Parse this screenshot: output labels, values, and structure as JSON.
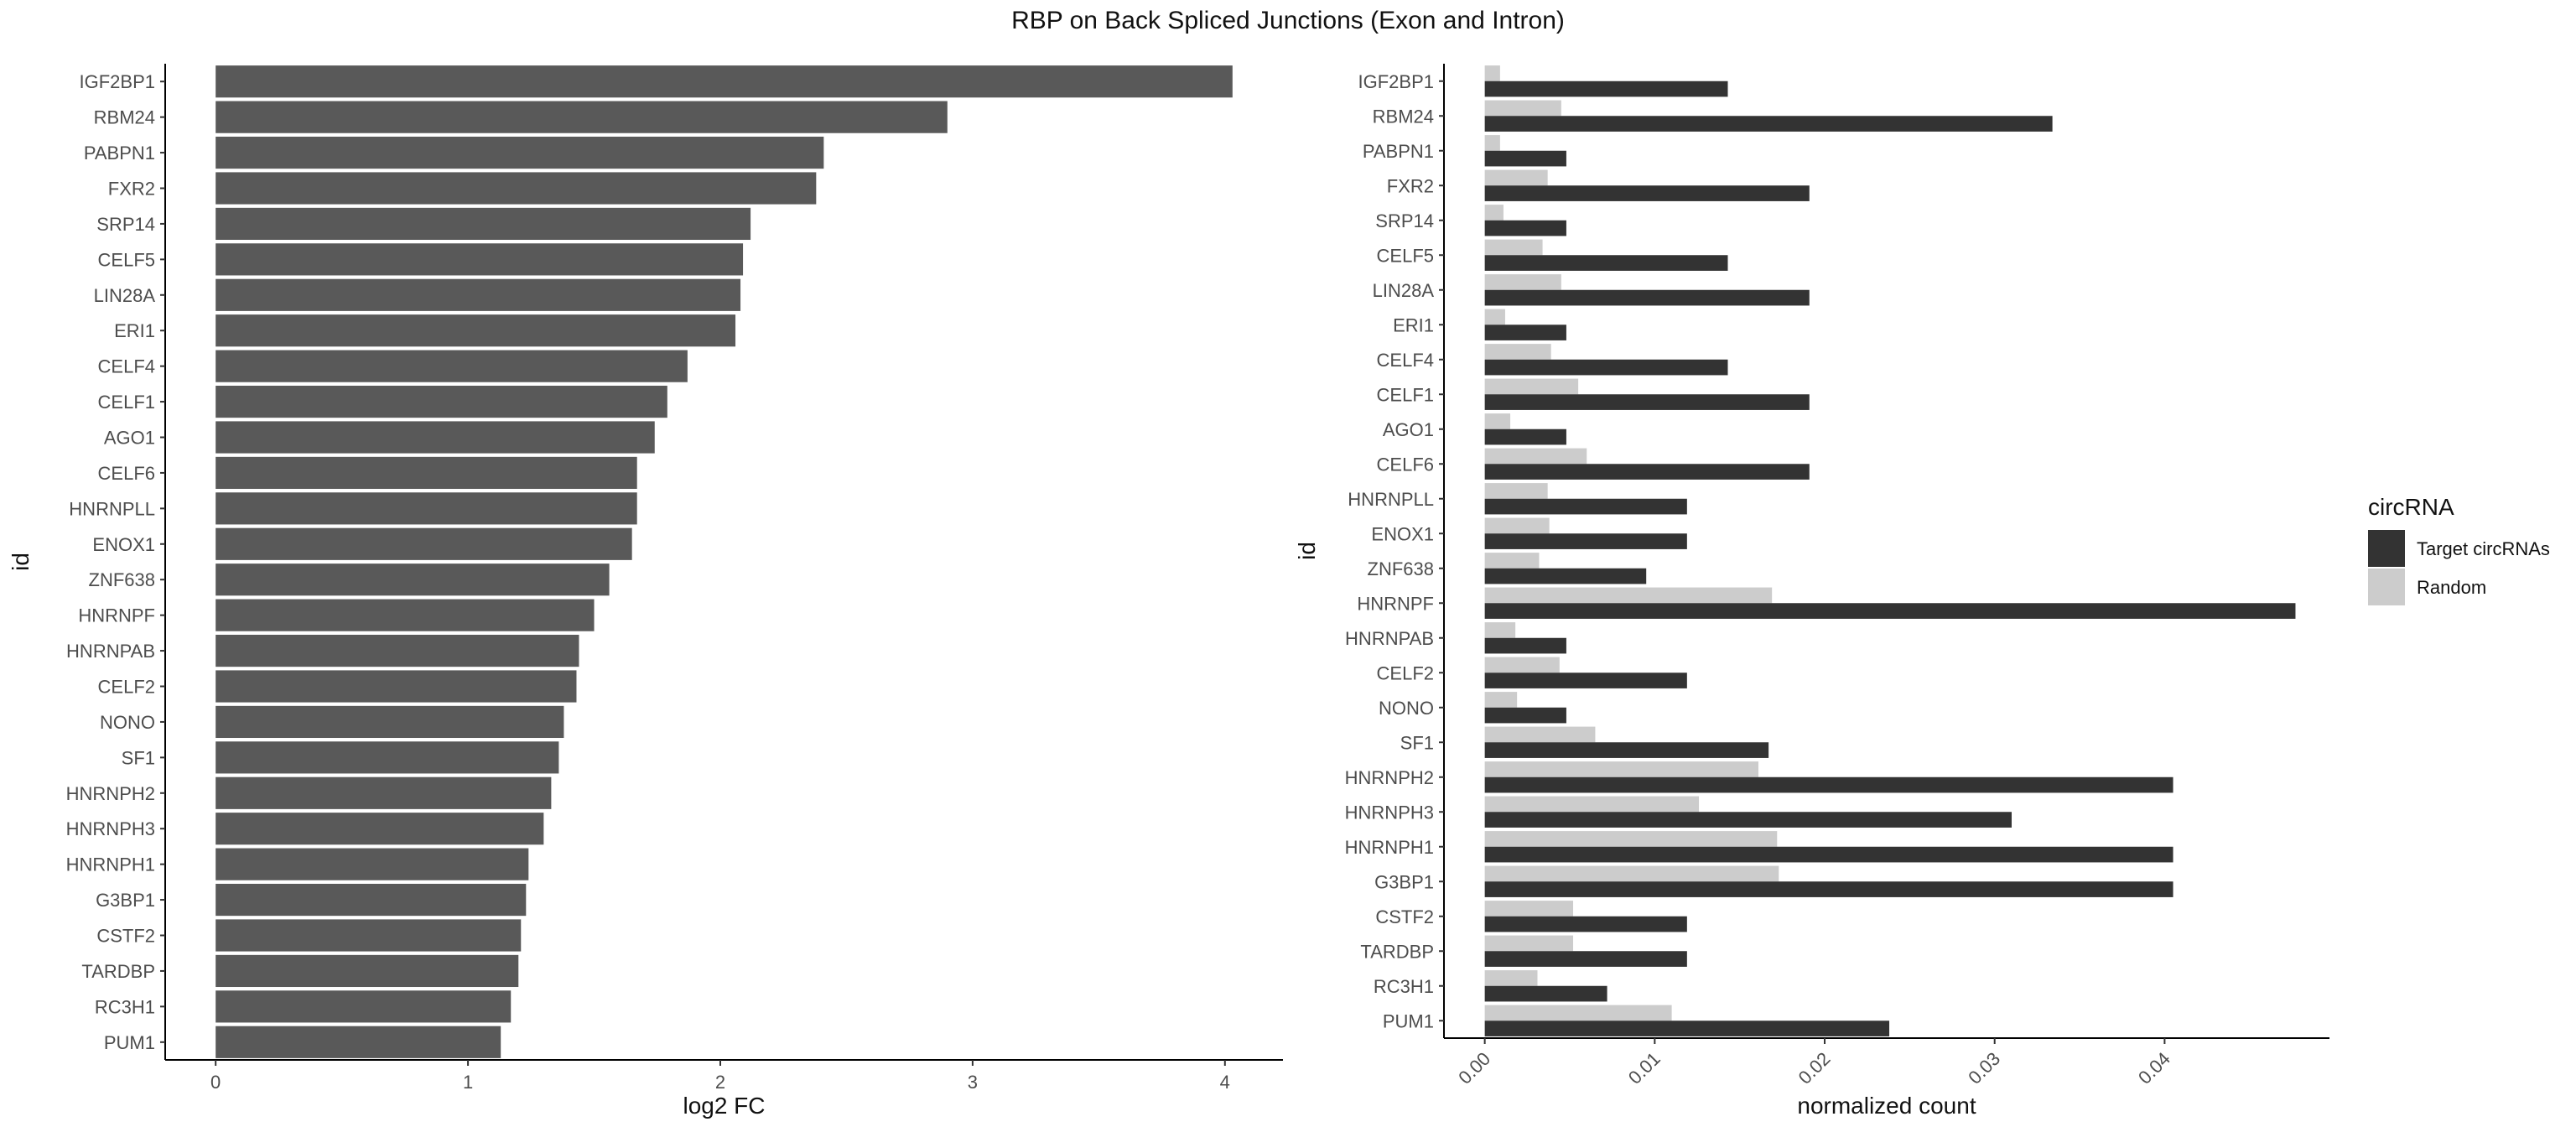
{
  "title": "RBP on Back Spliced Junctions (Exon and Intron)",
  "chart_data": [
    {
      "type": "bar",
      "orientation": "horizontal",
      "xlabel": "log2 FC",
      "ylabel": "id",
      "xlim": [
        -0.2,
        4.23
      ],
      "xticks": [
        "0",
        "1",
        "2",
        "3",
        "4"
      ],
      "bar_color": "#595959",
      "categories": [
        "IGF2BP1",
        "RBM24",
        "PABPN1",
        "FXR2",
        "SRP14",
        "CELF5",
        "LIN28A",
        "ERI1",
        "CELF4",
        "CELF1",
        "AGO1",
        "CELF6",
        "HNRNPLL",
        "ENOX1",
        "ZNF638",
        "HNRNPF",
        "HNRNPAB",
        "CELF2",
        "NONO",
        "SF1",
        "HNRNPH2",
        "HNRNPH3",
        "HNRNPH1",
        "G3BP1",
        "CSTF2",
        "TARDBP",
        "RC3H1",
        "PUM1"
      ],
      "values": [
        4.03,
        2.9,
        2.41,
        2.38,
        2.12,
        2.09,
        2.08,
        2.06,
        1.87,
        1.79,
        1.74,
        1.67,
        1.67,
        1.65,
        1.56,
        1.5,
        1.44,
        1.43,
        1.38,
        1.36,
        1.33,
        1.3,
        1.24,
        1.23,
        1.21,
        1.2,
        1.17,
        1.13
      ],
      "grid": false
    },
    {
      "type": "bar",
      "orientation": "horizontal",
      "grouped": true,
      "xlabel": "normalized count",
      "ylabel": "id",
      "xlim": [
        -0.0024,
        0.0497
      ],
      "xticks": [
        "0.00",
        "0.01",
        "0.02",
        "0.03",
        "0.04"
      ],
      "categories": [
        "IGF2BP1",
        "RBM24",
        "PABPN1",
        "FXR2",
        "SRP14",
        "CELF5",
        "LIN28A",
        "ERI1",
        "CELF4",
        "CELF1",
        "AGO1",
        "CELF6",
        "HNRNPLL",
        "ENOX1",
        "ZNF638",
        "HNRNPF",
        "HNRNPAB",
        "CELF2",
        "NONO",
        "SF1",
        "HNRNPH2",
        "HNRNPH3",
        "HNRNPH1",
        "G3BP1",
        "CSTF2",
        "TARDBP",
        "RC3H1",
        "PUM1"
      ],
      "series": [
        {
          "name": "Target circRNAs",
          "color": "#333333",
          "values": [
            0.0143,
            0.0334,
            0.0048,
            0.0191,
            0.0048,
            0.0143,
            0.0191,
            0.0048,
            0.0143,
            0.0191,
            0.0048,
            0.0191,
            0.0119,
            0.0119,
            0.0095,
            0.0477,
            0.0048,
            0.0119,
            0.0048,
            0.0167,
            0.0405,
            0.031,
            0.0405,
            0.0405,
            0.0119,
            0.0119,
            0.0072,
            0.0238
          ]
        },
        {
          "name": "Random",
          "color": "#cccccc",
          "values": [
            0.0009,
            0.0045,
            0.0009,
            0.0037,
            0.0011,
            0.0034,
            0.0045,
            0.0012,
            0.0039,
            0.0055,
            0.0015,
            0.006,
            0.0037,
            0.0038,
            0.0032,
            0.0169,
            0.0018,
            0.0044,
            0.0019,
            0.0065,
            0.0161,
            0.0126,
            0.0172,
            0.0173,
            0.0052,
            0.0052,
            0.0031,
            0.011
          ]
        }
      ],
      "legend": {
        "title": "circRNA",
        "position": "right"
      },
      "grid": false
    }
  ]
}
